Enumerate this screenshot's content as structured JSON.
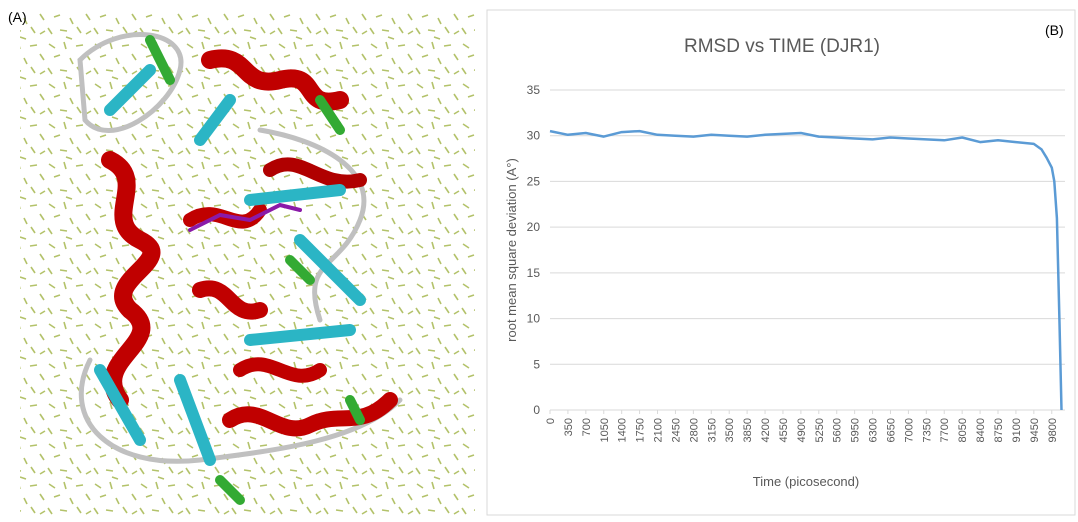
{
  "panel_labels": [
    "(A)",
    "(B)"
  ],
  "chart_data": {
    "type": "line",
    "title": "RMSD  vs TIME (DJR1)",
    "x_label": "Time (picosecond)",
    "y_label": "root mean square deviation (A°)",
    "x": [
      0,
      350,
      700,
      1050,
      1400,
      1750,
      2100,
      2450,
      2800,
      3150,
      3500,
      3850,
      4200,
      4550,
      4900,
      5250,
      5600,
      5950,
      6300,
      6650,
      7000,
      7350,
      7700,
      8050,
      8400,
      8750,
      9100,
      9450,
      9600,
      9700,
      9800,
      9850,
      9900,
      9950,
      9990
    ],
    "values": [
      30.5,
      30.1,
      30.3,
      29.9,
      30.4,
      30.5,
      30.1,
      30.0,
      29.9,
      30.1,
      30.0,
      29.9,
      30.1,
      30.2,
      30.3,
      29.9,
      29.8,
      29.7,
      29.6,
      29.8,
      29.7,
      29.6,
      29.5,
      29.8,
      29.3,
      29.5,
      29.3,
      29.1,
      28.5,
      27.6,
      26.5,
      25,
      21,
      10,
      0
    ],
    "color": "#5b9bd5",
    "xlim": [
      0,
      10000
    ],
    "ylim": [
      0,
      35
    ],
    "xticks": [
      0,
      350,
      700,
      1050,
      1400,
      1750,
      2100,
      2450,
      2800,
      3150,
      3500,
      3850,
      4200,
      4550,
      4900,
      5250,
      5600,
      5950,
      6300,
      6650,
      7000,
      7350,
      7700,
      8050,
      8400,
      8750,
      9100,
      9450,
      9800
    ],
    "yticks": [
      0,
      5,
      10,
      15,
      20,
      25,
      30,
      35
    ],
    "grid": true
  }
}
